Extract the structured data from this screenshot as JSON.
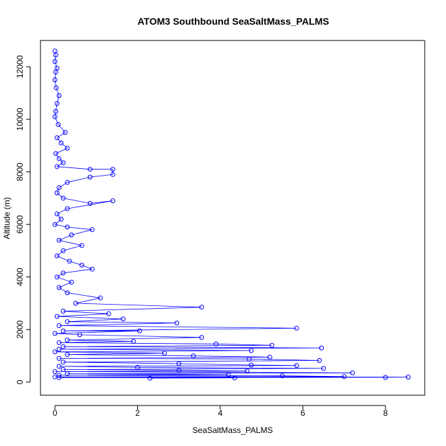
{
  "chart_data": {
    "type": "line",
    "title": "ATOM3 Southbound SeaSaltMass_PALMS",
    "xlabel": "SeaSaltMass_PALMS",
    "ylabel": "Altitude (m)",
    "xlim": [
      -0.35,
      8.95
    ],
    "ylim": [
      -500,
      13000
    ],
    "xticks": [
      0,
      2,
      4,
      6,
      8
    ],
    "yticks": [
      0,
      2000,
      4000,
      6000,
      8000,
      10000,
      12000
    ],
    "marker": "open-circle",
    "series_color": "#0000ff",
    "series": [
      {
        "name": "SeaSaltMass_PALMS",
        "points": [
          [
            0.0,
            12600
          ],
          [
            0.02,
            12450
          ],
          [
            0.0,
            12200
          ],
          [
            0.05,
            11950
          ],
          [
            0.02,
            11800
          ],
          [
            0.0,
            11500
          ],
          [
            0.03,
            11200
          ],
          [
            0.1,
            10900
          ],
          [
            0.05,
            10600
          ],
          [
            0.02,
            10300
          ],
          [
            0.0,
            10100
          ],
          [
            0.08,
            9800
          ],
          [
            0.25,
            9500
          ],
          [
            0.05,
            9300
          ],
          [
            0.15,
            9100
          ],
          [
            0.3,
            8900
          ],
          [
            0.02,
            8700
          ],
          [
            0.1,
            8500
          ],
          [
            0.2,
            8350
          ],
          [
            0.05,
            8200
          ],
          [
            0.85,
            8100
          ],
          [
            1.4,
            8100
          ],
          [
            1.4,
            7900
          ],
          [
            0.85,
            7800
          ],
          [
            0.3,
            7600
          ],
          [
            0.1,
            7400
          ],
          [
            0.05,
            7200
          ],
          [
            0.2,
            7000
          ],
          [
            0.85,
            6800
          ],
          [
            1.4,
            6900
          ],
          [
            0.3,
            6600
          ],
          [
            0.05,
            6400
          ],
          [
            0.15,
            6200
          ],
          [
            0.0,
            6000
          ],
          [
            0.3,
            5900
          ],
          [
            0.9,
            5800
          ],
          [
            0.4,
            5600
          ],
          [
            0.1,
            5400
          ],
          [
            0.65,
            5200
          ],
          [
            0.2,
            5000
          ],
          [
            0.05,
            4800
          ],
          [
            0.35,
            4600
          ],
          [
            0.65,
            4450
          ],
          [
            0.9,
            4300
          ],
          [
            0.2,
            4150
          ],
          [
            0.05,
            4000
          ],
          [
            0.4,
            3800
          ],
          [
            0.1,
            3600
          ],
          [
            0.3,
            3400
          ],
          [
            1.1,
            3200
          ],
          [
            0.5,
            3000
          ],
          [
            3.55,
            2850
          ],
          [
            0.2,
            2700
          ],
          [
            1.3,
            2600
          ],
          [
            0.05,
            2500
          ],
          [
            1.65,
            2400
          ],
          [
            0.3,
            2300
          ],
          [
            2.95,
            2250
          ],
          [
            0.1,
            2150
          ],
          [
            5.85,
            2050
          ],
          [
            0.2,
            1950
          ],
          [
            2.05,
            1950
          ],
          [
            0.0,
            1850
          ],
          [
            0.6,
            1800
          ],
          [
            3.55,
            1700
          ],
          [
            0.3,
            1600
          ],
          [
            1.9,
            1550
          ],
          [
            0.1,
            1500
          ],
          [
            3.9,
            1450
          ],
          [
            5.25,
            1400
          ],
          [
            0.2,
            1350
          ],
          [
            6.45,
            1300
          ],
          [
            0.1,
            1250
          ],
          [
            4.75,
            1200
          ],
          [
            0.0,
            1150
          ],
          [
            2.65,
            1100
          ],
          [
            0.3,
            1050
          ],
          [
            3.35,
            1000
          ],
          [
            5.2,
            950
          ],
          [
            0.1,
            900
          ],
          [
            4.7,
            880
          ],
          [
            6.4,
            820
          ],
          [
            0.2,
            760
          ],
          [
            3.0,
            700
          ],
          [
            4.75,
            650
          ],
          [
            5.85,
            630
          ],
          [
            0.1,
            600
          ],
          [
            2.0,
            560
          ],
          [
            6.5,
            520
          ],
          [
            0.2,
            480
          ],
          [
            3.0,
            450
          ],
          [
            4.65,
            420
          ],
          [
            0.0,
            400
          ],
          [
            7.2,
            350
          ],
          [
            0.3,
            320
          ],
          [
            4.2,
            290
          ],
          [
            0.1,
            260
          ],
          [
            5.5,
            240
          ],
          [
            7.0,
            210
          ],
          [
            0.0,
            200
          ],
          [
            8.55,
            190
          ],
          [
            8.0,
            180
          ],
          [
            0.1,
            170
          ],
          [
            4.35,
            160
          ],
          [
            2.3,
            150
          ]
        ]
      }
    ]
  }
}
